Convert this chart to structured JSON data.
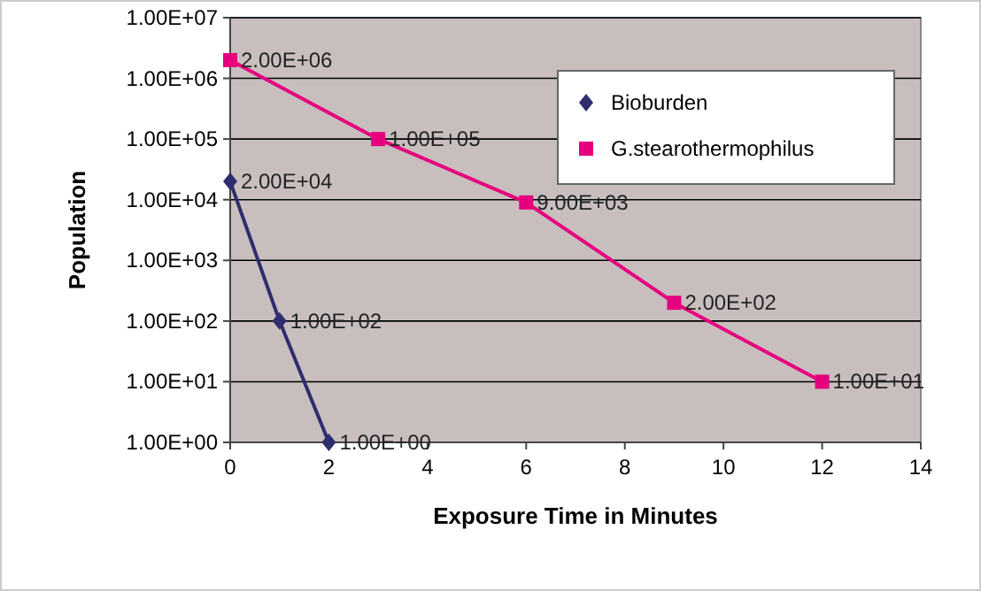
{
  "chart_data": {
    "type": "line",
    "xlabel": "Exposure Time in Minutes",
    "ylabel": "Population",
    "log": "y",
    "grid": "y",
    "legend": "top right",
    "xlim": [
      0,
      14
    ],
    "xticks": [
      0,
      2,
      4,
      6,
      8,
      10,
      12,
      14
    ],
    "ylim": [
      1,
      10000000
    ],
    "yticks": [
      {
        "value": 1,
        "label": "1.00E+00"
      },
      {
        "value": 10,
        "label": "1.00E+01"
      },
      {
        "value": 100,
        "label": "1.00E+02"
      },
      {
        "value": 1000,
        "label": "1.00E+03"
      },
      {
        "value": 10000,
        "label": "1.00E+04"
      },
      {
        "value": 100000,
        "label": "1.00E+05"
      },
      {
        "value": 1000000,
        "label": "1.00E+06"
      },
      {
        "value": 10000000,
        "label": "1.00E+07"
      }
    ],
    "series": [
      {
        "name": "Bioburden",
        "color": "#2e2e6e",
        "marker": "diamond",
        "x": [
          0,
          1,
          2
        ],
        "values": [
          20000,
          100,
          1
        ],
        "value_labels": [
          "2.00E+04",
          "1.00E+02",
          "1.00E+00"
        ]
      },
      {
        "name": "G.stearothermophilus",
        "color": "#e6007e",
        "marker": "square",
        "x": [
          0,
          3,
          6,
          9,
          12
        ],
        "values": [
          2000000,
          100000,
          9000,
          200,
          10
        ],
        "value_labels": [
          "2.00E+06",
          "1.00E+05",
          "9.00E+03",
          "2.00E+02",
          "1.00E+01"
        ]
      }
    ]
  }
}
